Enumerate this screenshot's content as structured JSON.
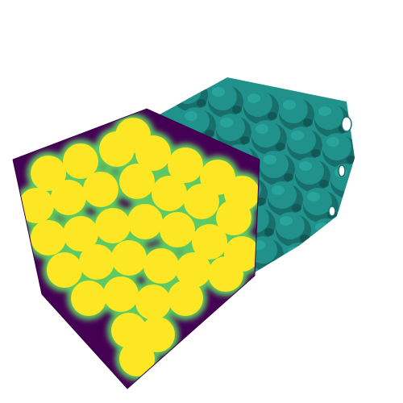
{
  "scene": {
    "background": "#ffffff",
    "colors": {
      "low": "#440154",
      "mid": "#21918c",
      "mid_dark": "#176e6b",
      "mid_light": "#2fb0a6",
      "high": "#fde725",
      "edge": "#5ec962"
    },
    "objects": [
      {
        "kind": "gyroid-isosurface",
        "colormap_value": "mid"
      },
      {
        "kind": "volume-cube-slices",
        "colormap": "viridis"
      }
    ]
  }
}
